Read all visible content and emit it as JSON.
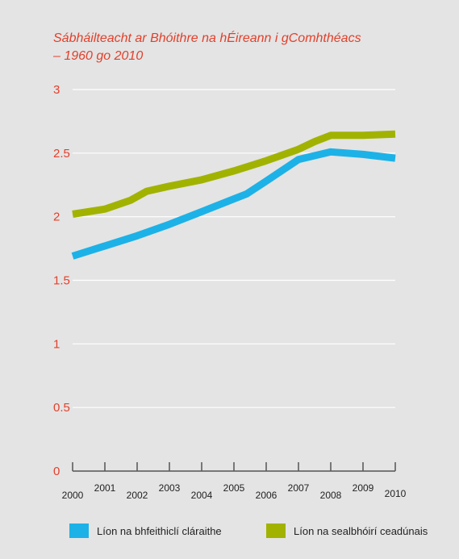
{
  "chart_data": {
    "type": "line",
    "title_lines": [
      "Sábháilteacht ar Bhóithre na hÉireann i gComhthéacs",
      "– 1960 go 2010"
    ],
    "xlabel": "",
    "ylabel": "",
    "ylim": [
      0,
      3
    ],
    "y_ticks": [
      {
        "value": 0,
        "label": "0"
      },
      {
        "value": 0.5,
        "label": "0.5"
      },
      {
        "value": 1,
        "label": "1"
      },
      {
        "value": 1.5,
        "label": "1.5"
      },
      {
        "value": 2,
        "label": "2"
      },
      {
        "value": 2.5,
        "label": "2.5"
      },
      {
        "value": 3,
        "label": "3"
      }
    ],
    "xlim": [
      2000,
      2010
    ],
    "x_ticks": [
      {
        "value": 2000,
        "label": "2000",
        "level": "low"
      },
      {
        "value": 2001,
        "label": "2001",
        "level": "high"
      },
      {
        "value": 2002,
        "label": "2002",
        "level": "low"
      },
      {
        "value": 2003,
        "label": "2003",
        "level": "high"
      },
      {
        "value": 2004,
        "label": "2004",
        "level": "low"
      },
      {
        "value": 2005,
        "label": "2005",
        "level": "high"
      },
      {
        "value": 2006,
        "label": "2006",
        "level": "low"
      },
      {
        "value": 2007,
        "label": "2007",
        "level": "high"
      },
      {
        "value": 2008,
        "label": "2008",
        "level": "low"
      },
      {
        "value": 2009,
        "label": "2009",
        "level": "high"
      },
      {
        "value": 2010,
        "label": "2010",
        "level": "mid"
      }
    ],
    "grid": "horizontal",
    "legend_position": "bottom",
    "series": [
      {
        "name": "Líon na bhfeithiclí cláraithe",
        "color": "#1cb2e7",
        "points": [
          [
            2000,
            1.69
          ],
          [
            2001,
            1.77
          ],
          [
            2002,
            1.85
          ],
          [
            2003,
            1.94
          ],
          [
            2004,
            2.04
          ],
          [
            2005,
            2.14
          ],
          [
            2005.4,
            2.18
          ],
          [
            2006,
            2.28
          ],
          [
            2007,
            2.45
          ],
          [
            2008,
            2.51
          ],
          [
            2009,
            2.49
          ],
          [
            2010,
            2.46
          ]
        ]
      },
      {
        "name": "Líon na sealbhóirí ceadúnais",
        "color": "#a1b300",
        "points": [
          [
            2000,
            2.02
          ],
          [
            2001,
            2.06
          ],
          [
            2001.8,
            2.13
          ],
          [
            2002.3,
            2.2
          ],
          [
            2003,
            2.24
          ],
          [
            2004,
            2.29
          ],
          [
            2005,
            2.36
          ],
          [
            2006,
            2.44
          ],
          [
            2007,
            2.53
          ],
          [
            2007.5,
            2.59
          ],
          [
            2008,
            2.64
          ],
          [
            2009,
            2.64
          ],
          [
            2010,
            2.65
          ]
        ]
      }
    ]
  },
  "theme": {
    "panel": "#e4e4e4",
    "accent": "#e2402b",
    "grid": "#ffffff",
    "axis": "#555555"
  }
}
